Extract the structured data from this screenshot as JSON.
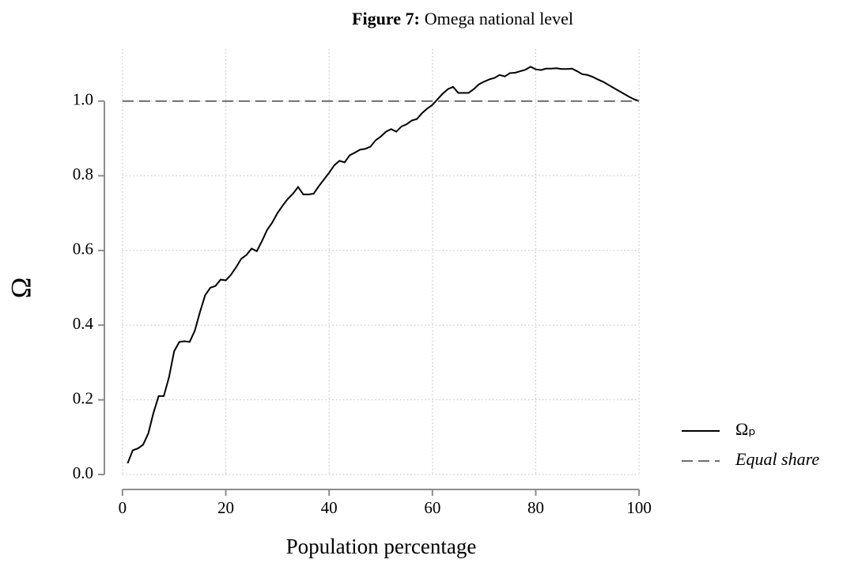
{
  "chart_data": {
    "type": "line",
    "figure_label": "Figure 7:",
    "title": "Omega national level",
    "x_label": "Population percentage",
    "y_label": "Ω",
    "xlim": [
      -3.5,
      103.5
    ],
    "ylim": [
      -0.04,
      1.15
    ],
    "xticks": [
      0,
      20,
      40,
      60,
      80,
      100
    ],
    "yticks": [
      {
        "value": 0,
        "label": "0.0"
      },
      {
        "value": 0.2,
        "label": "0.2"
      },
      {
        "value": 0.4,
        "label": "0.4"
      },
      {
        "value": 0.6,
        "label": "0.6"
      },
      {
        "value": 0.8,
        "label": "0.8"
      },
      {
        "value": 1,
        "label": "1.0"
      }
    ],
    "grid": true,
    "legend": "right",
    "series": [
      {
        "name": "Ωₚ",
        "color": "#000000",
        "dash": false,
        "x": [
          1,
          2,
          3,
          4,
          5,
          6,
          7,
          8,
          9,
          10,
          11,
          12,
          13,
          14,
          15,
          16,
          17,
          18,
          19,
          20,
          21,
          22,
          23,
          24,
          25,
          26,
          27,
          28,
          29,
          30,
          31,
          32,
          33,
          34,
          35,
          36,
          37,
          38,
          39,
          40,
          41,
          42,
          43,
          44,
          45,
          46,
          47,
          48,
          49,
          50,
          51,
          52,
          53,
          54,
          55,
          56,
          57,
          58,
          59,
          60,
          61,
          62,
          63,
          64,
          65,
          66,
          67,
          68,
          69,
          70,
          71,
          72,
          73,
          74,
          75,
          76,
          77,
          78,
          79,
          80,
          81,
          82,
          83,
          84,
          85,
          86,
          87,
          88,
          89,
          90,
          91,
          92,
          93,
          94,
          95,
          96,
          97,
          98,
          99,
          100
        ],
        "values": [
          0.03,
          0.065,
          0.07,
          0.08,
          0.11,
          0.165,
          0.21,
          0.21,
          0.26,
          0.33,
          0.355,
          0.357,
          0.355,
          0.385,
          0.435,
          0.48,
          0.5,
          0.505,
          0.522,
          0.52,
          0.535,
          0.555,
          0.578,
          0.588,
          0.605,
          0.598,
          0.625,
          0.655,
          0.675,
          0.7,
          0.72,
          0.738,
          0.752,
          0.77,
          0.75,
          0.75,
          0.752,
          0.772,
          0.79,
          0.808,
          0.828,
          0.84,
          0.836,
          0.855,
          0.862,
          0.87,
          0.872,
          0.878,
          0.895,
          0.905,
          0.918,
          0.925,
          0.918,
          0.932,
          0.938,
          0.948,
          0.952,
          0.968,
          0.98,
          0.99,
          1.005,
          1.02,
          1.032,
          1.038,
          1.022,
          1.022,
          1.022,
          1.032,
          1.045,
          1.052,
          1.058,
          1.062,
          1.07,
          1.066,
          1.075,
          1.076,
          1.08,
          1.084,
          1.092,
          1.085,
          1.083,
          1.087,
          1.087,
          1.088,
          1.086,
          1.086,
          1.087,
          1.08,
          1.072,
          1.07,
          1.065,
          1.058,
          1.052,
          1.044,
          1.036,
          1.028,
          1.02,
          1.012,
          1.005,
          1.0
        ]
      },
      {
        "name": "Equal share",
        "color": "#6e6e6e",
        "dash": true,
        "x": [
          0,
          100
        ],
        "values": [
          1,
          1
        ]
      }
    ]
  }
}
